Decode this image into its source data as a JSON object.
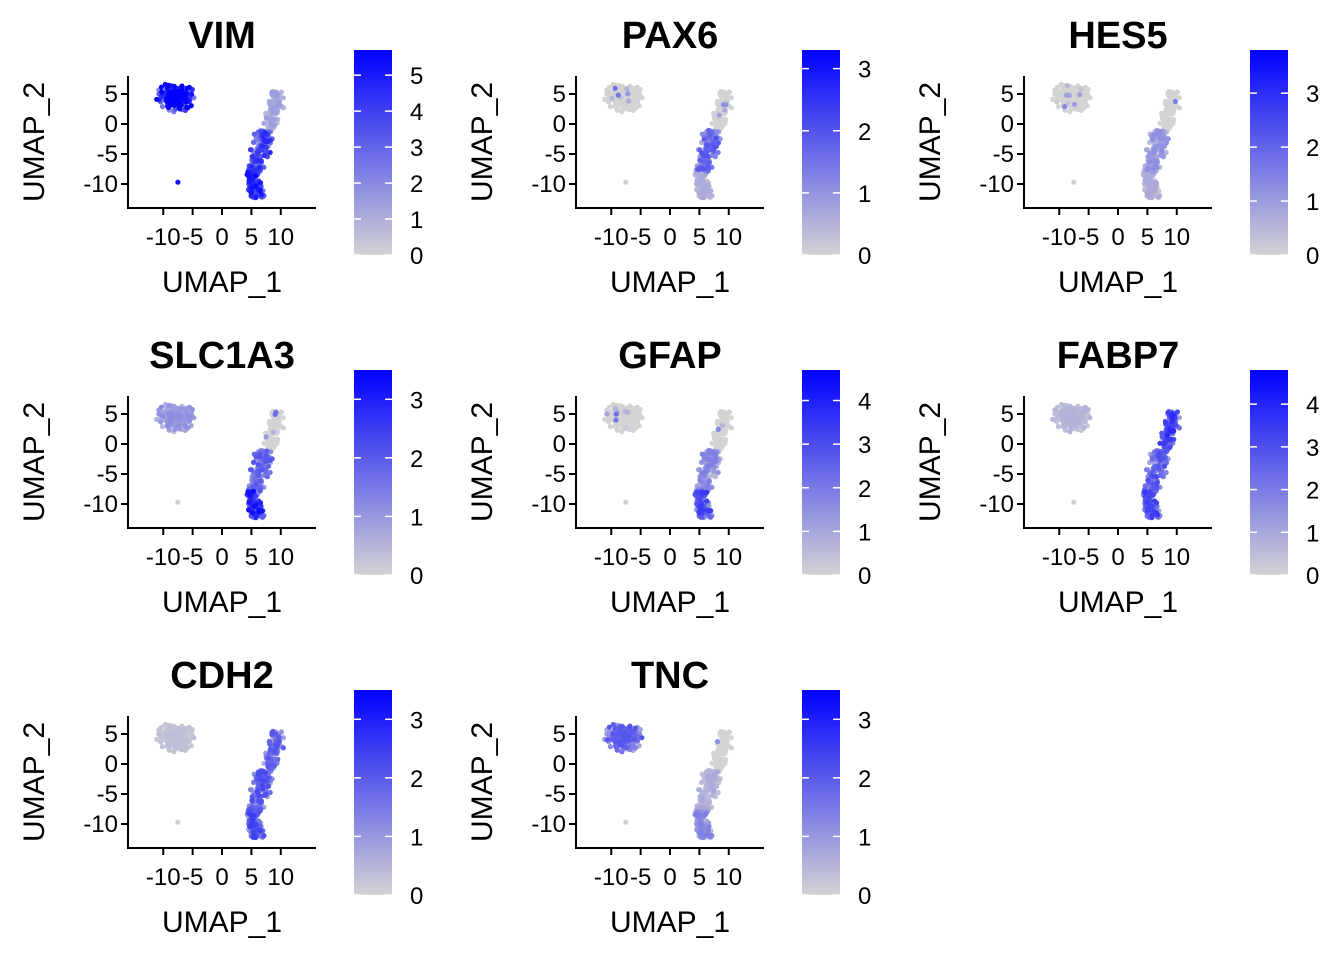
{
  "chart_data": {
    "type": "scatter",
    "figure_kind": "UMAP feature plots",
    "color_low": "#d3d3d3",
    "color_high": "#0000ff",
    "x_axis": {
      "label": "UMAP_1",
      "range": [
        -16,
        16
      ],
      "ticks": [
        -10,
        -5,
        0,
        5,
        10
      ],
      "tick_labels": [
        "-10",
        "-5",
        "0",
        "5",
        "10"
      ]
    },
    "y_axis": {
      "label": "UMAP_2",
      "range": [
        -14,
        8
      ],
      "ticks": [
        5,
        0,
        -5,
        -10
      ],
      "tick_labels": [
        "5",
        "0",
        "-5",
        "-10"
      ]
    },
    "clusters": {
      "A": {
        "description": "upper-left cluster",
        "center": [
          -7.5,
          3.5
        ]
      },
      "B": {
        "description": "lower-right cluster",
        "center": [
          7,
          -3
        ]
      },
      "outlier": {
        "point": [
          -7.5,
          -9.7
        ]
      }
    },
    "panels": [
      {
        "gene": "VIM",
        "legend_max": 5.7,
        "legend_ticks": [
          0,
          1,
          2,
          3,
          4,
          5
        ],
        "legend_tick_labels": [
          "0",
          "1",
          "2",
          "3",
          "4",
          "5"
        ],
        "expr": {
          "A": 0.85,
          "B_top": 0.2,
          "B_mid": 0.6,
          "B_bottom": 0.7,
          "outlier": 0.75
        }
      },
      {
        "gene": "PAX6",
        "legend_max": 3.3,
        "legend_ticks": [
          0,
          1,
          2,
          3
        ],
        "legend_tick_labels": [
          "0",
          "1",
          "2",
          "3"
        ],
        "expr": {
          "A": 0.0,
          "B_top": 0.02,
          "B_mid": 0.45,
          "B_bottom": 0.15,
          "outlier": 0.0
        }
      },
      {
        "gene": "HES5",
        "legend_max": 3.8,
        "legend_ticks": [
          0,
          1,
          2,
          3
        ],
        "legend_tick_labels": [
          "0",
          "1",
          "2",
          "3"
        ],
        "expr": {
          "A": 0.0,
          "B_top": 0.02,
          "B_mid": 0.25,
          "B_bottom": 0.15,
          "outlier": 0.0
        }
      },
      {
        "gene": "SLC1A3",
        "legend_max": 3.5,
        "legend_ticks": [
          0,
          1,
          2,
          3
        ],
        "legend_tick_labels": [
          "0",
          "1",
          "2",
          "3"
        ],
        "expr": {
          "A": 0.25,
          "B_top": 0.03,
          "B_mid": 0.45,
          "B_bottom": 0.7,
          "outlier": 0.0
        }
      },
      {
        "gene": "GFAP",
        "legend_max": 4.7,
        "legend_ticks": [
          0,
          1,
          2,
          3,
          4
        ],
        "legend_tick_labels": [
          "0",
          "1",
          "2",
          "3",
          "4"
        ],
        "expr": {
          "A": 0.04,
          "B_top": 0.03,
          "B_mid": 0.3,
          "B_bottom": 0.55,
          "outlier": 0.0
        }
      },
      {
        "gene": "FABP7",
        "legend_max": 4.8,
        "legend_ticks": [
          0,
          1,
          2,
          3,
          4
        ],
        "legend_tick_labels": [
          "0",
          "1",
          "2",
          "3",
          "4"
        ],
        "expr": {
          "A": 0.12,
          "B_top": 0.6,
          "B_mid": 0.5,
          "B_bottom": 0.55,
          "outlier": 0.0
        }
      },
      {
        "gene": "CDH2",
        "legend_max": 3.5,
        "legend_ticks": [
          0,
          1,
          2,
          3
        ],
        "legend_tick_labels": [
          "0",
          "1",
          "2",
          "3"
        ],
        "expr": {
          "A": 0.08,
          "B_top": 0.45,
          "B_mid": 0.5,
          "B_bottom": 0.55,
          "outlier": 0.0
        }
      },
      {
        "gene": "TNC",
        "legend_max": 3.5,
        "legend_ticks": [
          0,
          1,
          2,
          3
        ],
        "legend_tick_labels": [
          "0",
          "1",
          "2",
          "3"
        ],
        "expr": {
          "A": 0.45,
          "B_top": 0.0,
          "B_mid": 0.15,
          "B_bottom": 0.3,
          "outlier": 0.0
        }
      }
    ]
  }
}
